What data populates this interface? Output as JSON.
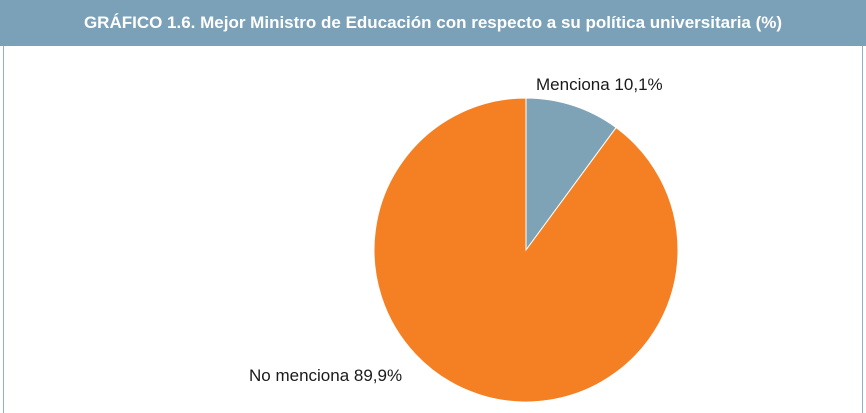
{
  "chart_data": {
    "type": "pie",
    "title": "GRÁFICO 1.6. Mejor Ministro de Educación con respecto a su política universitaria (%)",
    "slices": [
      {
        "label": "Menciona 10,1%",
        "value": 10.1,
        "color": "#7fa3b6"
      },
      {
        "label": "No menciona 89,9%",
        "value": 89.9,
        "color": "#f58023"
      }
    ],
    "title_bar_color": "#7aa1b8"
  }
}
